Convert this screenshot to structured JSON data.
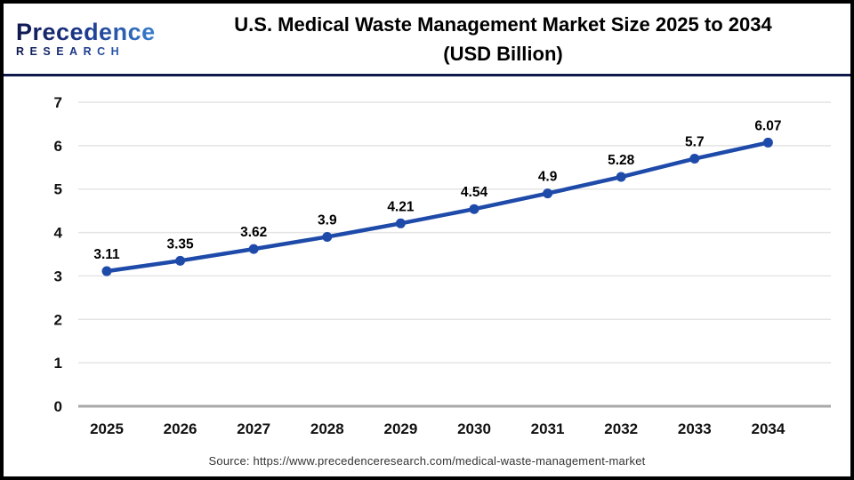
{
  "header": {
    "logo": {
      "line1": "Precedence",
      "line2": "RESEARCH"
    },
    "title_line1": "U.S. Medical Waste Management Market Size 2025 to 2034",
    "title_line2": "(USD Billion)"
  },
  "chart_data": {
    "type": "line",
    "title": "U.S. Medical Waste Management Market Size 2025 to 2034 (USD Billion)",
    "categories": [
      "2025",
      "2026",
      "2027",
      "2028",
      "2029",
      "2030",
      "2031",
      "2032",
      "2033",
      "2034"
    ],
    "values": [
      3.11,
      3.35,
      3.62,
      3.9,
      4.21,
      4.54,
      4.9,
      5.28,
      5.7,
      6.07
    ],
    "data_labels": [
      "3.11",
      "3.35",
      "3.62",
      "3.9",
      "4.21",
      "4.54",
      "4.9",
      "5.28",
      "5.7",
      "6.07"
    ],
    "xlabel": "",
    "ylabel": "",
    "ylim": [
      0,
      7
    ],
    "y_ticks": [
      0,
      1,
      2,
      3,
      4,
      5,
      6,
      7
    ],
    "grid": true,
    "legend": false,
    "line_color": "#1e4aa9",
    "marker_color": "#1e4aa9",
    "grid_color": "#e4e4e4",
    "zero_axis_color": "#a8a8a8"
  },
  "footer": {
    "source": "Source: https://www.precedenceresearch.com/medical-waste-management-market"
  }
}
